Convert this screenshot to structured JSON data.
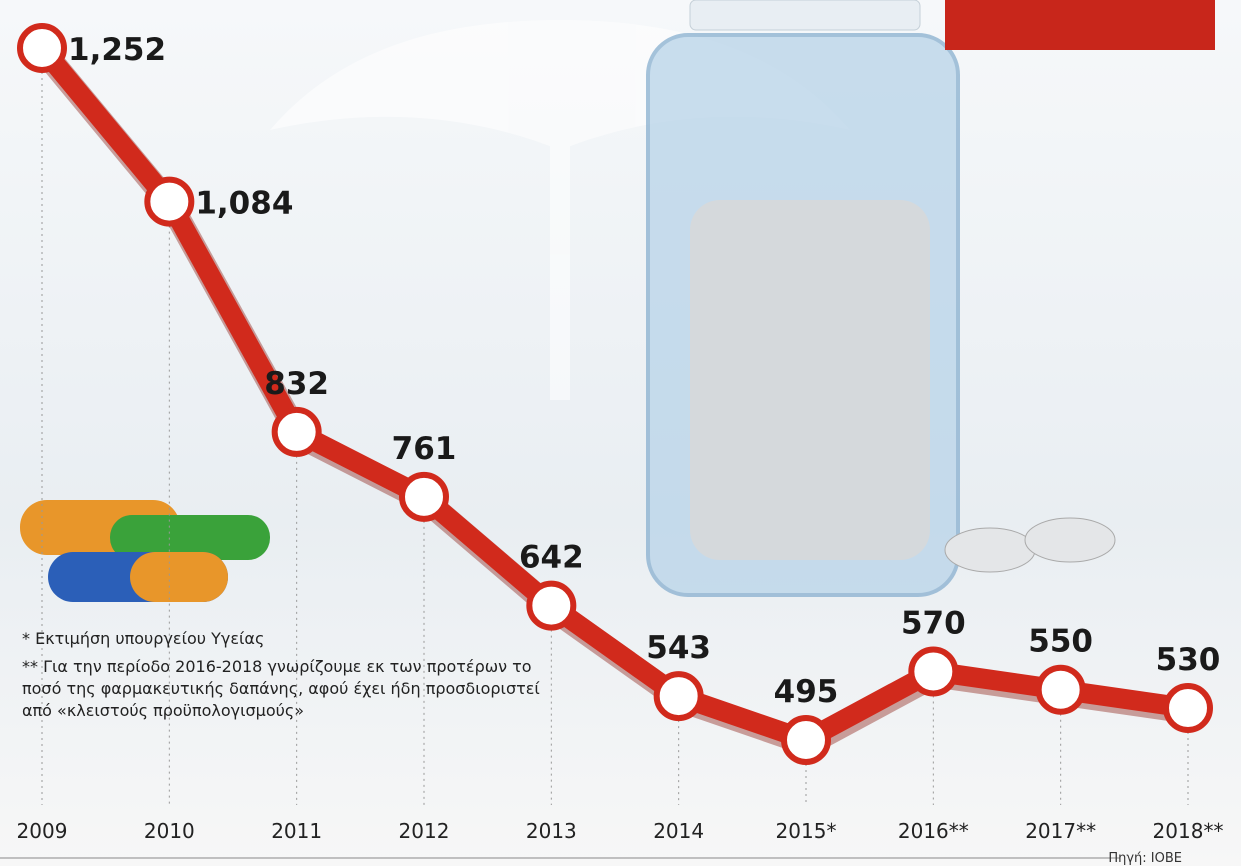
{
  "chart_data": {
    "type": "line",
    "categories": [
      "2009",
      "2010",
      "2011",
      "2012",
      "2013",
      "2014",
      "2015*",
      "2016**",
      "2017**",
      "2018**"
    ],
    "values": [
      1252,
      1084,
      832,
      761,
      642,
      543,
      495,
      570,
      550,
      530
    ],
    "value_labels": [
      "1,252",
      "1,084",
      "832",
      "761",
      "642",
      "543",
      "495",
      "570",
      "550",
      "530"
    ],
    "color": "#d12a1c",
    "notes": [
      "* Εκτιμήση υπουργείου Υγείας",
      "** Για την περίοδο 2016-2018 γνωρίζουμε εκ των προτέρων το ποσό της φαρμακευτικής δαπάνης, αφού έχει ήδη προσδιοριστεί από «κλειστούς προϋπολογισμούς»"
    ],
    "source": "Πηγή: ΙΟΒΕ"
  }
}
